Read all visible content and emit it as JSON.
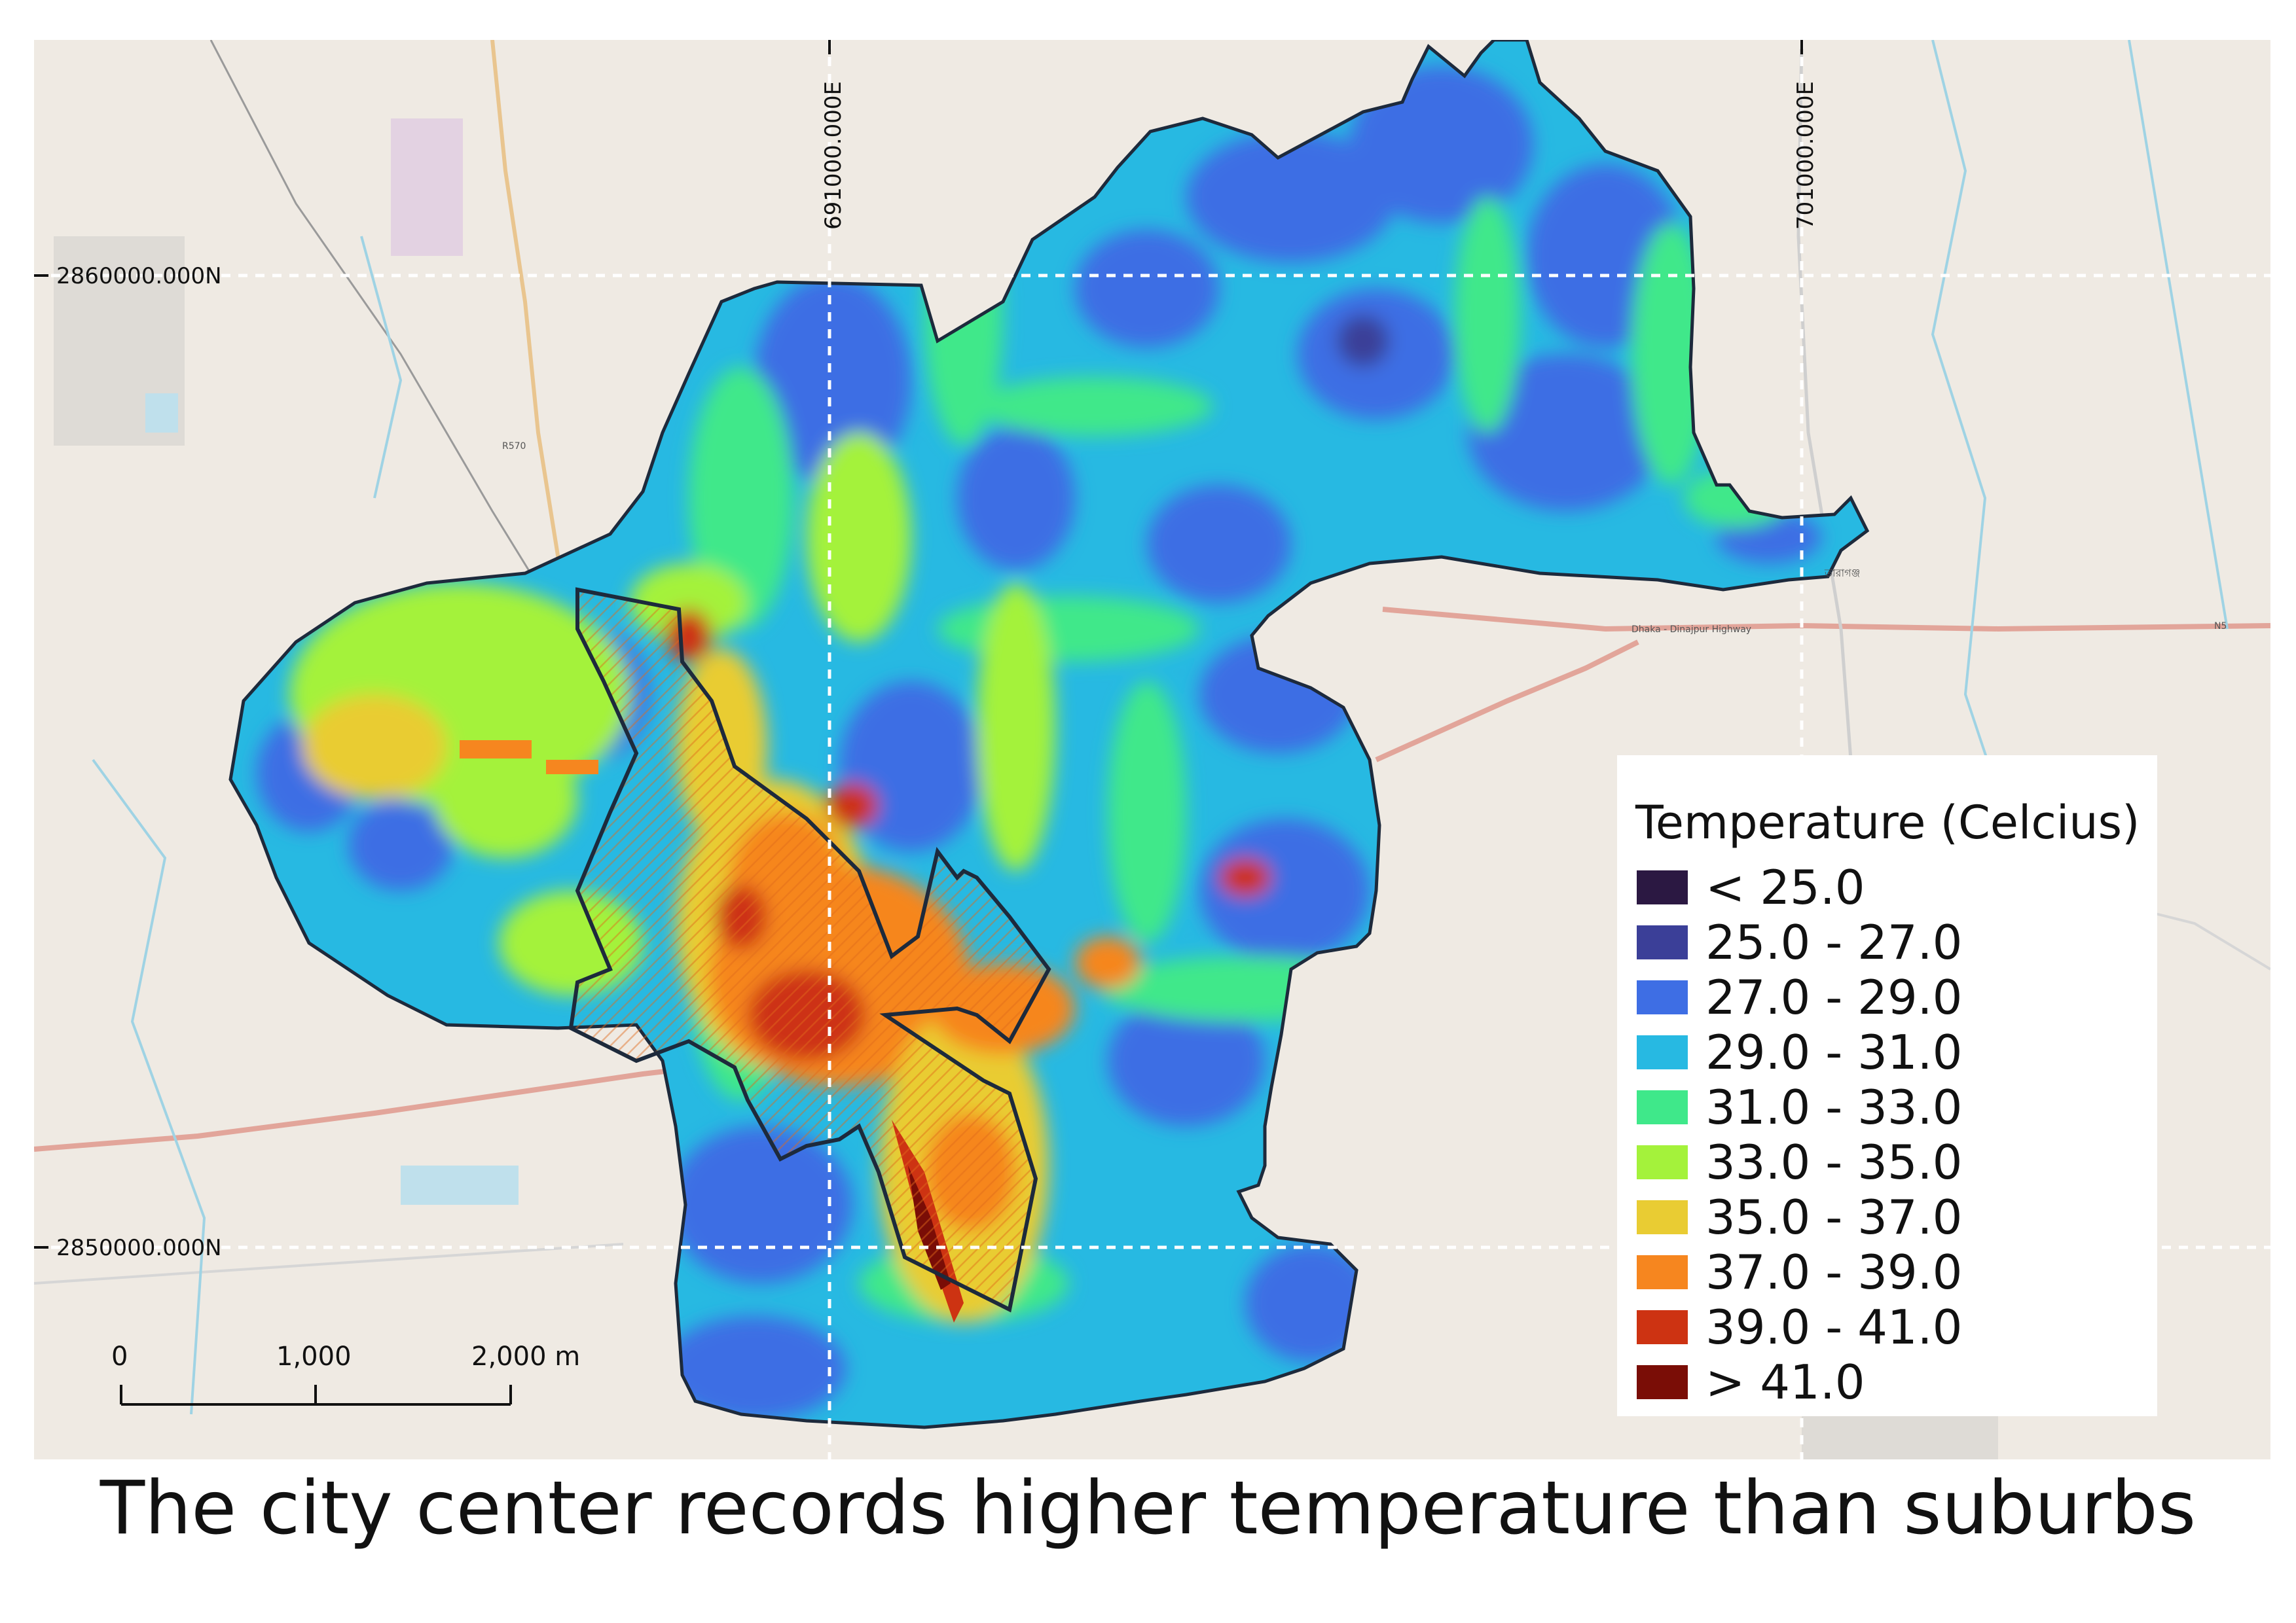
{
  "caption": "The city center records higher temperature than suburbs",
  "grid": {
    "easting_labels": [
      "691000.000E",
      "701000.000E"
    ],
    "northing_labels": [
      "2860000.000N",
      "2850000.000N"
    ]
  },
  "scalebar": {
    "ticks": [
      "0",
      "1,000",
      "2,000 m"
    ]
  },
  "map_text": {
    "road_name": "Dhaka - Dinajpur Highway",
    "road_code": "N5",
    "road_code_north": "R570",
    "town_label": "তারাগঞ্জ"
  },
  "legend": {
    "title": "Temperature (Celcius)",
    "classes": [
      {
        "label": "< 25.0",
        "color": "#2b1842"
      },
      {
        "label": "25.0 - 27.0",
        "color": "#3b3f98"
      },
      {
        "label": "27.0 - 29.0",
        "color": "#3e6ee4"
      },
      {
        "label": "29.0 - 31.0",
        "color": "#27b9e2"
      },
      {
        "label": "31.0 - 33.0",
        "color": "#3fe88a"
      },
      {
        "label": "33.0 - 35.0",
        "color": "#a4f23b"
      },
      {
        "label": "35.0 - 37.0",
        "color": "#e9cc33"
      },
      {
        "label": "37.0 - 39.0",
        "color": "#f6861f"
      },
      {
        "label": "39.0 - 41.0",
        "color": "#cd3312"
      },
      {
        "label": "> 41.0",
        "color": "#7a0d06"
      }
    ]
  }
}
